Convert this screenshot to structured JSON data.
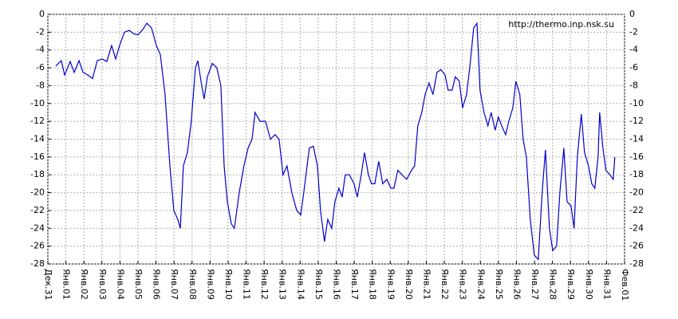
{
  "chart_data": {
    "type": "line",
    "annotation": "http://thermo.inp.nsk.su",
    "x": [
      0.44,
      0.75,
      0.93,
      1.24,
      1.46,
      1.73,
      1.95,
      2.21,
      2.48,
      2.74,
      3.01,
      3.27,
      3.54,
      3.76,
      3.98,
      4.25,
      4.51,
      4.78,
      5.0,
      5.27,
      5.49,
      5.75,
      6.02,
      6.24,
      6.5,
      6.77,
      6.99,
      7.21,
      7.35,
      7.52,
      7.74,
      7.96,
      8.19,
      8.32,
      8.5,
      8.67,
      8.85,
      9.12,
      9.38,
      9.6,
      9.78,
      9.96,
      10.18,
      10.35,
      10.62,
      10.88,
      11.11,
      11.33,
      11.5,
      11.77,
      12.08,
      12.35,
      12.61,
      12.83,
      13.05,
      13.27,
      13.54,
      13.81,
      14.03,
      14.2,
      14.51,
      14.73,
      14.96,
      15.13,
      15.35,
      15.53,
      15.75,
      15.93,
      16.15,
      16.33,
      16.5,
      16.73,
      16.99,
      17.17,
      17.39,
      17.57,
      17.79,
      17.96,
      18.14,
      18.36,
      18.58,
      18.81,
      19.03,
      19.2,
      19.42,
      19.65,
      19.91,
      20.18,
      20.35,
      20.53,
      20.75,
      20.93,
      21.15,
      21.37,
      21.59,
      21.81,
      22.04,
      22.21,
      22.43,
      22.61,
      22.83,
      23.01,
      23.23,
      23.41,
      23.63,
      23.81,
      23.98,
      24.2,
      24.42,
      24.6,
      24.82,
      25.0,
      25.18,
      25.4,
      25.58,
      25.8,
      25.97,
      26.19,
      26.37,
      26.55,
      26.77,
      26.99,
      27.21,
      27.43,
      27.61,
      27.83,
      28.01,
      28.23,
      28.41,
      28.63,
      28.81,
      29.03,
      29.2,
      29.38,
      29.6,
      29.78,
      30.0,
      30.18,
      30.35,
      30.53,
      30.62,
      30.8,
      30.97,
      31.19,
      31.37,
      31.46
    ],
    "series": [
      {
        "color": "#0000cc",
        "values": [
          -5.8,
          -5.2,
          -6.8,
          -5.3,
          -6.5,
          -5.2,
          -6.5,
          -6.8,
          -7.2,
          -5.2,
          -5.0,
          -5.3,
          -3.5,
          -5.0,
          -3.5,
          -2.0,
          -1.8,
          -2.2,
          -2.3,
          -1.7,
          -1.0,
          -1.5,
          -3.5,
          -4.5,
          -9,
          -17,
          -22,
          -23,
          -24,
          -17,
          -15.5,
          -12,
          -6,
          -5.2,
          -7.5,
          -9.5,
          -7,
          -5.5,
          -6,
          -8,
          -17,
          -21,
          -23.5,
          -24,
          -20,
          -17,
          -15,
          -14,
          -11,
          -12,
          -12,
          -14,
          -13.5,
          -14,
          -18,
          -17,
          -20,
          -22,
          -22.5,
          -20,
          -15,
          -14.8,
          -17,
          -22,
          -25.5,
          -23,
          -24,
          -21,
          -19.5,
          -20.5,
          -18,
          -18,
          -19,
          -20.5,
          -18,
          -15.5,
          -18,
          -19,
          -19,
          -16.5,
          -19,
          -18.5,
          -19.5,
          -19.5,
          -17.5,
          -18,
          -18.5,
          -17.5,
          -17,
          -12.5,
          -11,
          -9,
          -7.7,
          -9,
          -6.5,
          -6.2,
          -6.8,
          -8.5,
          -8.5,
          -7,
          -7.5,
          -10.5,
          -9,
          -6,
          -1.5,
          -1,
          -8.5,
          -11,
          -12.5,
          -11,
          -13,
          -11.5,
          -12.5,
          -13.5,
          -12,
          -10.5,
          -7.5,
          -9,
          -14,
          -16,
          -23,
          -27,
          -27.5,
          -20,
          -15.2,
          -24,
          -26.5,
          -26,
          -20,
          -15,
          -21,
          -21.5,
          -24,
          -16,
          -11.2,
          -15.5,
          -17,
          -19,
          -19.5,
          -16,
          -11,
          -15,
          -17.5,
          -18,
          -18.5,
          -16
        ]
      }
    ],
    "xlim": [
      0,
      32
    ],
    "xticks": [
      {
        "value": 0,
        "label": "Дек.31"
      },
      {
        "value": 1,
        "label": "Янв.01"
      },
      {
        "value": 2,
        "label": "Янв.02"
      },
      {
        "value": 3,
        "label": "Янв.03"
      },
      {
        "value": 4,
        "label": "Янв.04"
      },
      {
        "value": 5,
        "label": "Янв.05"
      },
      {
        "value": 6,
        "label": "Янв.06"
      },
      {
        "value": 7,
        "label": "Янв.07"
      },
      {
        "value": 8,
        "label": "Янв.08"
      },
      {
        "value": 9,
        "label": "Янв.09"
      },
      {
        "value": 10,
        "label": "Янв.10"
      },
      {
        "value": 11,
        "label": "Янв.11"
      },
      {
        "value": 12,
        "label": "Янв.12"
      },
      {
        "value": 13,
        "label": "Янв.13"
      },
      {
        "value": 14,
        "label": "Янв.14"
      },
      {
        "value": 15,
        "label": "Янв.15"
      },
      {
        "value": 16,
        "label": "Янв.16"
      },
      {
        "value": 17,
        "label": "Янв.17"
      },
      {
        "value": 18,
        "label": "Янв.18"
      },
      {
        "value": 19,
        "label": "Янв.19"
      },
      {
        "value": 20,
        "label": "Янв.20"
      },
      {
        "value": 21,
        "label": "Янв.21"
      },
      {
        "value": 22,
        "label": "Янв.22"
      },
      {
        "value": 23,
        "label": "Янв.23"
      },
      {
        "value": 24,
        "label": "Янв.24"
      },
      {
        "value": 25,
        "label": "Янв.25"
      },
      {
        "value": 26,
        "label": "Янв.26"
      },
      {
        "value": 27,
        "label": "Янв.27"
      },
      {
        "value": 28,
        "label": "Янв.28"
      },
      {
        "value": 29,
        "label": "Янв.29"
      },
      {
        "value": 30,
        "label": "Янв.30"
      },
      {
        "value": 31,
        "label": "Янв.31"
      },
      {
        "value": 32,
        "label": "Фев.01"
      }
    ],
    "ylim": [
      -28,
      0
    ],
    "yticks": [
      0,
      -2,
      -4,
      -6,
      -8,
      -10,
      -12,
      -14,
      -16,
      -18,
      -20,
      -22,
      -24,
      -26,
      -28
    ],
    "grid": true,
    "right_axis_labels": true
  }
}
